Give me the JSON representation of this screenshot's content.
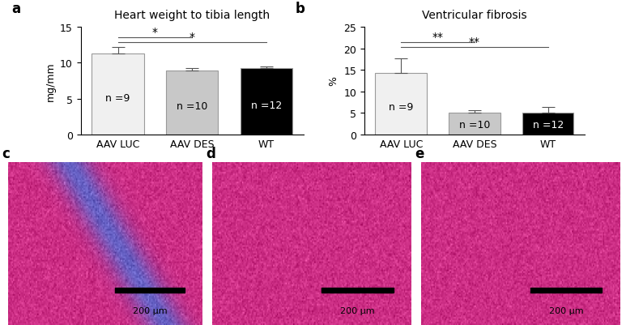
{
  "chart_data": [
    {
      "type": "bar",
      "panel_label": "a",
      "title": "Heart weight to tibia length",
      "y_label": "mg/mm",
      "categories": [
        "AAV LUC",
        "AAV DES",
        "WT"
      ],
      "values": [
        11.3,
        8.9,
        9.2
      ],
      "errors": [
        0.9,
        0.35,
        0.3
      ],
      "colors": [
        "#f0f0f0",
        "#c8c8c8",
        "#000000"
      ],
      "bar_texts": [
        "n =9",
        "n =10",
        "n =12"
      ],
      "significance": [
        {
          "pair": [
            0,
            1
          ],
          "label": "*",
          "y": 13.5
        },
        {
          "pair": [
            0,
            2
          ],
          "label": "*",
          "y": 12.9
        }
      ],
      "ylim": [
        0,
        15
      ],
      "yticks": [
        0,
        5,
        10,
        15
      ],
      "grid": false
    },
    {
      "type": "bar",
      "panel_label": "b",
      "title": "Ventricular fibrosis",
      "y_label": "%",
      "categories": [
        "AAV LUC",
        "AAV DES",
        "WT"
      ],
      "values": [
        14.3,
        5.0,
        5.1
      ],
      "errors": [
        3.4,
        0.7,
        1.2
      ],
      "colors": [
        "#f0f0f0",
        "#c8c8c8",
        "#000000"
      ],
      "bar_texts": [
        "n =9",
        "n =10",
        "n =12"
      ],
      "significance": [
        {
          "pair": [
            0,
            1
          ],
          "label": "**",
          "y": 21.4
        },
        {
          "pair": [
            0,
            2
          ],
          "label": "**",
          "y": 20.3
        }
      ],
      "ylim": [
        0,
        25
      ],
      "yticks": [
        0,
        5,
        10,
        15,
        20,
        25
      ],
      "grid": false
    }
  ],
  "image_panels": [
    {
      "panel_label": "c",
      "scale_bar": "200 µm"
    },
    {
      "panel_label": "d",
      "scale_bar": "200 µm"
    },
    {
      "panel_label": "e",
      "scale_bar": "200 µm"
    }
  ]
}
